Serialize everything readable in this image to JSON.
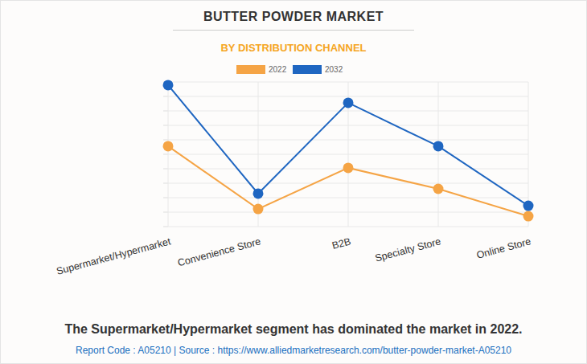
{
  "chart_data": {
    "type": "line",
    "title": "BUTTER POWDER MARKET",
    "subtitle": "BY DISTRIBUTION CHANNEL",
    "categories": [
      "Supermarket/Hypermarket",
      "Convenience Store",
      "B2B",
      "Specialty Store",
      "Online Store"
    ],
    "series": [
      {
        "name": "2022",
        "color": "#f5a445",
        "marker": "circle",
        "values": [
          5.56,
          1.22,
          4.06,
          2.61,
          0.72
        ]
      },
      {
        "name": "2032",
        "color": "#1f66c1",
        "marker": "circle",
        "values": [
          9.78,
          2.28,
          8.56,
          5.56,
          1.44
        ]
      }
    ],
    "ylim": [
      0,
      10
    ],
    "yticks": [
      0,
      1,
      2,
      3,
      4,
      5,
      6,
      7,
      8,
      9,
      10
    ],
    "grid": true,
    "legend": "top",
    "tick_labels": "x",
    "annotations": [
      "The Supermarket/Hypermarket segment has dominated the market in 2022.",
      "Report Code : A05210  |  Source : https://www.alliedmarketresearch.com/butter-powder-market-A05210"
    ]
  }
}
